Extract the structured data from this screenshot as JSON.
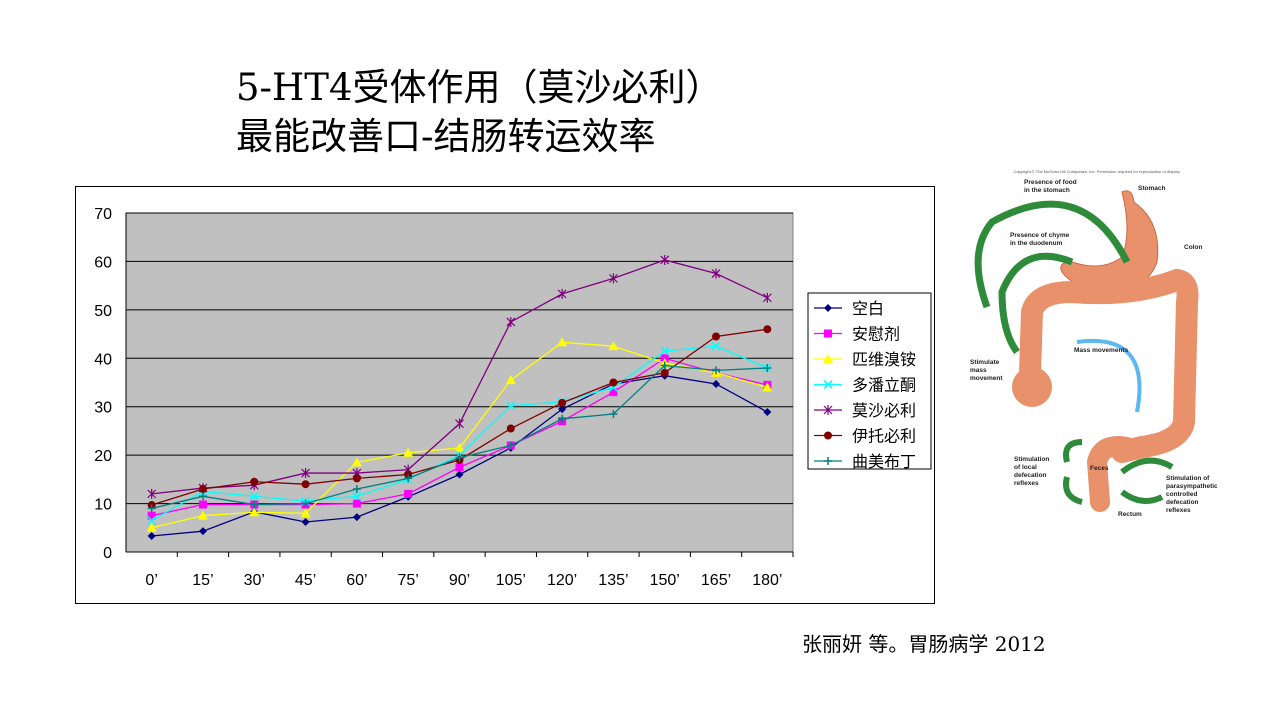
{
  "slide": {
    "title_line1": "5-HT4受体作用（莫沙必利）",
    "title_line2": "最能改善口-结肠转运效率",
    "citation": "张丽妍 等。胃肠病学 2012"
  },
  "illustration": {
    "copyright": "Copyright © The McGraw-Hill Companies, Inc. Permission required for reproduction or display.",
    "labels": {
      "food1": "Presence of food",
      "food2": "in the stomach",
      "chyme1": "Presence of chyme",
      "chyme2": "in the duodenum",
      "stomach": "Stomach",
      "colon": "Colon",
      "mass_movements": "Mass movements",
      "stim1": "Stimulate",
      "stim2": "mass",
      "stim3": "movement",
      "local1": "Stimulation",
      "local2": "of local",
      "local3": "defecation",
      "local4": "reflexes",
      "feces": "Feces",
      "rectum": "Rectum",
      "para1": "Stimulation of",
      "para2": "parasympathetic",
      "para3": "controlled",
      "para4": "defecation",
      "para5": "reflexes"
    }
  },
  "chart_data": {
    "type": "line",
    "title": "",
    "xlabel": "",
    "ylabel": "",
    "categories": [
      "0’",
      "15’",
      "30’",
      "45’",
      "60’",
      "75’",
      "90’",
      "105’",
      "120’",
      "135’",
      "150’",
      "165’",
      "180’"
    ],
    "ylim": [
      0,
      70
    ],
    "yticks": [
      0,
      10,
      20,
      30,
      40,
      50,
      60,
      70
    ],
    "grid": true,
    "legend_position": "right",
    "series": [
      {
        "name": "空白",
        "color": "#000080",
        "marker": "diamond",
        "values": [
          3.3,
          4.3,
          8.3,
          6.2,
          7.2,
          11.4,
          16,
          21.5,
          29.5,
          34.7,
          36.4,
          34.7,
          28.9
        ]
      },
      {
        "name": "安慰剂",
        "color": "#FF00FF",
        "marker": "square",
        "values": [
          7.5,
          9.8,
          9.8,
          9.8,
          10,
          12,
          17.5,
          22,
          27,
          33,
          40,
          37,
          34.5
        ]
      },
      {
        "name": "匹维溴铵",
        "color": "#FFFF00",
        "marker": "triangle",
        "values": [
          5,
          7.5,
          8.2,
          8,
          18.5,
          20.5,
          21.5,
          35.5,
          43.3,
          42.5,
          39,
          37,
          34
        ]
      },
      {
        "name": "多潘立酮",
        "color": "#00FFFF",
        "marker": "x",
        "values": [
          6.5,
          12.5,
          11.5,
          10.5,
          11.5,
          15,
          20,
          30.2,
          31,
          34,
          41.5,
          42.5,
          38
        ]
      },
      {
        "name": "莫沙必利",
        "color": "#800080",
        "marker": "star",
        "values": [
          12,
          13.2,
          13.8,
          16.3,
          16.3,
          17,
          26.5,
          47.5,
          53.3,
          56.5,
          60.3,
          57.5,
          52.5
        ]
      },
      {
        "name": "伊托必利",
        "color": "#800000",
        "marker": "circle",
        "values": [
          9.7,
          13,
          14.5,
          14,
          15.2,
          16,
          19,
          25.5,
          30.8,
          35,
          37,
          44.5,
          46
        ]
      },
      {
        "name": "曲美布丁",
        "color": "#008080",
        "marker": "plus",
        "values": [
          9,
          11.5,
          9.8,
          10,
          13,
          15.2,
          19.5,
          22,
          27.5,
          28.5,
          38.5,
          37.5,
          38
        ]
      }
    ]
  }
}
